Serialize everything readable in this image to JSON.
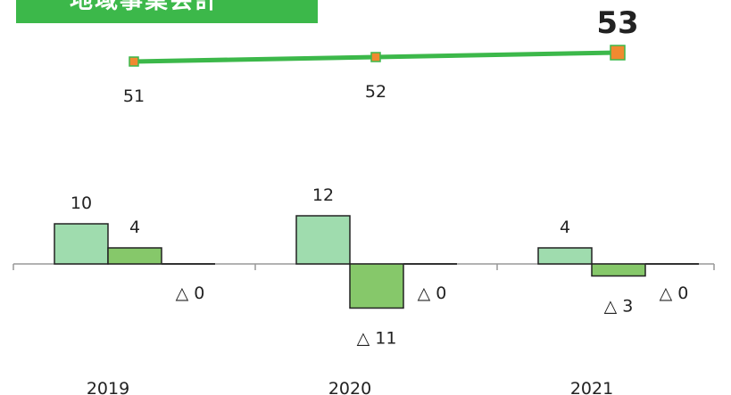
{
  "header": {
    "title": "地域事業会計"
  },
  "colors": {
    "banner": "#3cb84a",
    "line": "#3cb84a",
    "marker": "#f08a30",
    "bar_light": "#9fdcae",
    "bar_medium": "#86c86a",
    "axis": "#999999"
  },
  "chart_data": [
    {
      "type": "line",
      "title": "",
      "x": [
        "2019",
        "2020",
        "2021"
      ],
      "values": [
        51,
        52,
        53
      ],
      "value_labels": [
        "51",
        "52",
        "53"
      ],
      "highlight_last": true
    },
    {
      "type": "bar",
      "title": "",
      "categories": [
        "2019",
        "2020",
        "2021"
      ],
      "series": [
        {
          "values": [
            10,
            12,
            4
          ],
          "labels": [
            "10",
            "12",
            "4"
          ]
        },
        {
          "values": [
            4,
            -11,
            -3
          ],
          "labels": [
            "4",
            "△ 11",
            "△ 3"
          ]
        },
        {
          "values": [
            0,
            0,
            0
          ],
          "labels": [
            "△ 0",
            "△ 0",
            "△ 0"
          ]
        }
      ],
      "grid": false,
      "legend": "none"
    }
  ]
}
